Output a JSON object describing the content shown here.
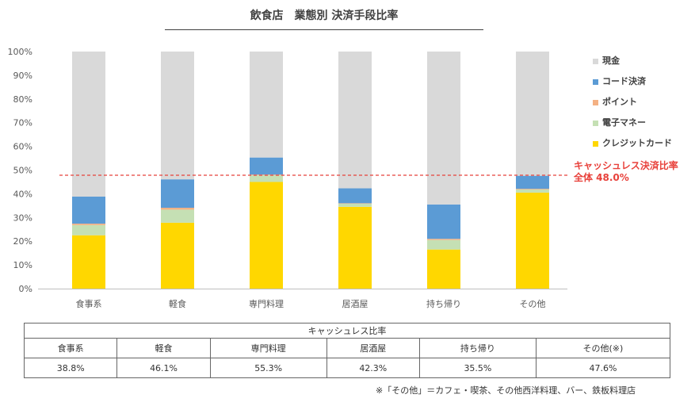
{
  "chart_data": {
    "type": "bar",
    "stacked": true,
    "title": "飲食店　業態別 決済手段比率",
    "categories": [
      "食事系",
      "軽食",
      "専門料理",
      "居酒屋",
      "持ち帰り",
      "その他"
    ],
    "y_ticks": [
      "0%",
      "10%",
      "20%",
      "30%",
      "40%",
      "50%",
      "60%",
      "70%",
      "80%",
      "90%",
      "100%"
    ],
    "ylim": [
      0,
      100
    ],
    "series": [
      {
        "name": "クレジットカード",
        "color": "#ffd700",
        "values": [
          22.5,
          27.8,
          45.0,
          34.5,
          16.5,
          40.5
        ]
      },
      {
        "name": "電子マネー",
        "color": "#c5e0b4",
        "values": [
          4.3,
          5.5,
          2.8,
          1.3,
          4.0,
          1.3
        ]
      },
      {
        "name": "ポイント",
        "color": "#f4b183",
        "values": [
          0.6,
          0.8,
          0.3,
          0.2,
          0.5,
          0.3
        ]
      },
      {
        "name": "コード決済",
        "color": "#5b9bd5",
        "values": [
          11.4,
          12.0,
          7.2,
          6.3,
          14.5,
          5.5
        ]
      },
      {
        "name": "現金",
        "color": "#d9d9d9",
        "values": [
          61.2,
          53.9,
          44.7,
          57.7,
          64.5,
          52.4
        ]
      }
    ],
    "legend_order": [
      "現金",
      "コード決済",
      "ポイント",
      "電子マネー",
      "クレジットカード"
    ],
    "reference_line": {
      "value": 48.0,
      "color": "#e8413b",
      "label_line1": "キャッシュレス決済比率",
      "label_line2": "全体 48.0%"
    }
  },
  "table": {
    "caption": "キャッシュレス比率",
    "headers": [
      "食事系",
      "軽食",
      "専門料理",
      "居酒屋",
      "持ち帰り",
      "その他(※)"
    ],
    "values": [
      "38.8%",
      "46.1%",
      "55.3%",
      "42.3%",
      "35.5%",
      "47.6%"
    ]
  },
  "footnote": "※「その他」＝カフェ・喫茶、その他西洋料理、バー、鉄板料理店"
}
